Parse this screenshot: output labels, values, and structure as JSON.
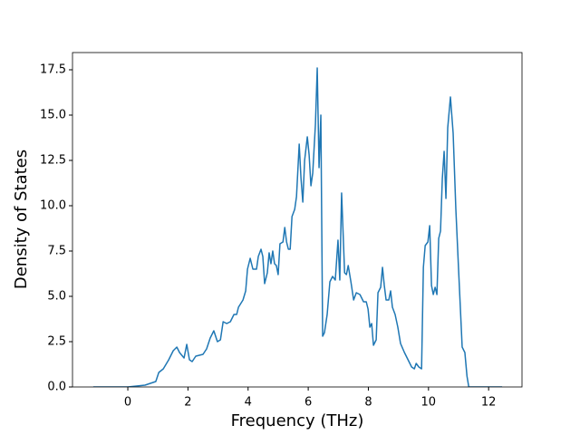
{
  "chart_data": {
    "type": "line",
    "xlabel": "Frequency (THz)",
    "ylabel": "Density of States",
    "x": [
      -1.15,
      0,
      0.57,
      0.93,
      1.03,
      1.18,
      1.36,
      1.51,
      1.63,
      1.72,
      1.87,
      1.96,
      2.05,
      2.14,
      2.26,
      2.5,
      2.62,
      2.74,
      2.86,
      2.98,
      3.08,
      3.17,
      3.29,
      3.41,
      3.53,
      3.62,
      3.68,
      3.83,
      3.92,
      3.98,
      4.07,
      4.16,
      4.28,
      4.34,
      4.43,
      4.49,
      4.55,
      4.64,
      4.7,
      4.76,
      4.82,
      4.88,
      4.94,
      5.0,
      5.06,
      5.16,
      5.22,
      5.28,
      5.34,
      5.4,
      5.46,
      5.55,
      5.61,
      5.7,
      5.76,
      5.82,
      5.88,
      5.97,
      6.03,
      6.09,
      6.15,
      6.24,
      6.3,
      6.36,
      6.42,
      6.48,
      6.54,
      6.63,
      6.72,
      6.81,
      6.9,
      6.99,
      7.05,
      7.11,
      7.21,
      7.27,
      7.33,
      7.42,
      7.51,
      7.6,
      7.72,
      7.84,
      7.93,
      7.99,
      8.05,
      8.11,
      8.17,
      8.26,
      8.32,
      8.41,
      8.47,
      8.53,
      8.59,
      8.68,
      8.74,
      8.8,
      8.89,
      8.98,
      9.07,
      9.2,
      9.32,
      9.44,
      9.53,
      9.59,
      9.68,
      9.77,
      9.83,
      9.89,
      9.98,
      10.04,
      10.1,
      10.16,
      10.22,
      10.28,
      10.34,
      10.4,
      10.46,
      10.52,
      10.58,
      10.64,
      10.73,
      10.82,
      10.91,
      11.0,
      11.12,
      11.21,
      11.28,
      11.34,
      12.45
    ],
    "values": [
      0,
      0,
      0.1,
      0.3,
      0.8,
      1.0,
      1.5,
      2.0,
      2.2,
      1.9,
      1.6,
      2.35,
      1.5,
      1.4,
      1.7,
      1.8,
      2.1,
      2.7,
      3.1,
      2.5,
      2.6,
      3.6,
      3.5,
      3.6,
      4.0,
      4.0,
      4.4,
      4.8,
      5.3,
      6.5,
      7.1,
      6.5,
      6.5,
      7.2,
      7.6,
      7.2,
      5.7,
      6.3,
      7.4,
      6.8,
      7.5,
      6.8,
      6.7,
      6.2,
      7.9,
      8.0,
      8.8,
      8.0,
      7.6,
      7.6,
      9.4,
      9.8,
      10.5,
      13.4,
      11.5,
      10.2,
      12.5,
      13.8,
      12.8,
      11.1,
      11.8,
      14.5,
      17.6,
      12.1,
      15.0,
      2.8,
      3.0,
      4.0,
      5.8,
      6.1,
      5.9,
      8.1,
      5.9,
      10.7,
      6.3,
      6.2,
      6.7,
      5.8,
      4.8,
      5.2,
      5.1,
      4.7,
      4.7,
      4.3,
      3.3,
      3.5,
      2.3,
      2.6,
      5.2,
      5.5,
      6.6,
      5.6,
      4.8,
      4.8,
      5.3,
      4.4,
      4.0,
      3.3,
      2.4,
      1.9,
      1.5,
      1.1,
      1.0,
      1.3,
      1.1,
      1.0,
      6.6,
      7.8,
      8.0,
      8.9,
      5.6,
      5.1,
      5.5,
      5.1,
      8.2,
      8.6,
      11.5,
      13.0,
      10.4,
      14.3,
      16.0,
      14.0,
      9.8,
      6.5,
      2.2,
      1.9,
      0.6,
      0,
      0
    ],
    "color": "#1f77b4",
    "xlim": [
      -1.84,
      13.11
    ],
    "ylim": [
      0,
      18.45
    ],
    "xticks": [
      0,
      2,
      4,
      6,
      8,
      10,
      12
    ],
    "yticks": [
      {
        "value": 0,
        "label": "0.0"
      },
      2.5,
      {
        "value": 5,
        "label": "5.0"
      },
      7.5,
      {
        "value": 10,
        "label": "10.0"
      },
      12.5,
      {
        "value": 15,
        "label": "15.0"
      },
      17.5
    ]
  }
}
